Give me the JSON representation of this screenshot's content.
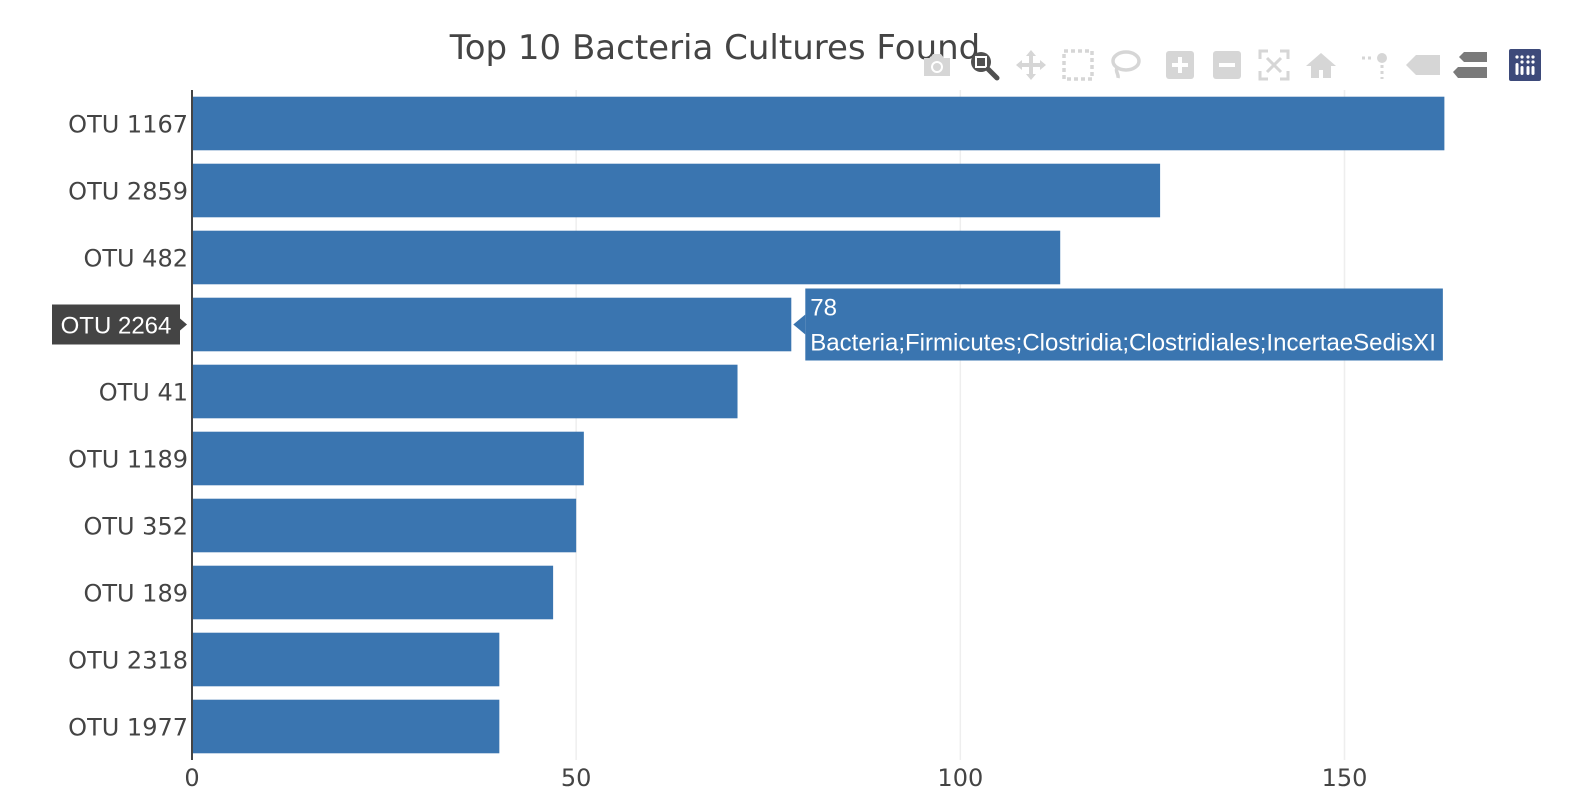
{
  "chart_data": {
    "type": "bar",
    "orientation": "horizontal",
    "title": "Top 10 Bacteria Cultures Found",
    "categories": [
      "OTU 1167",
      "OTU 2859",
      "OTU 482",
      "OTU 2264",
      "OTU 41",
      "OTU 1189",
      "OTU 352",
      "OTU 189",
      "OTU 2318",
      "OTU 1977"
    ],
    "values": [
      163,
      126,
      113,
      78,
      71,
      51,
      50,
      47,
      40,
      40
    ],
    "xlim": [
      0,
      180
    ],
    "xticks": [
      0,
      50,
      100,
      150
    ],
    "grid": true,
    "bar_color": "#3a75b0",
    "hover": {
      "category": "OTU 2264",
      "value_text": "78",
      "label_text": "Bacteria;Firmicutes;Clostridia;Clostridiales;IncertaeSedisXI"
    }
  },
  "modebar": {
    "buttons": [
      "camera-icon",
      "zoom-icon",
      "pan-icon",
      "box-select-icon",
      "lasso-select-icon",
      "zoom-in-icon",
      "zoom-out-icon",
      "autoscale-icon",
      "reset-axes-icon",
      "spike-lines-icon",
      "hover-closest-icon",
      "hover-compare-icon",
      "plotly-logo-icon"
    ],
    "active": "zoom-icon"
  }
}
